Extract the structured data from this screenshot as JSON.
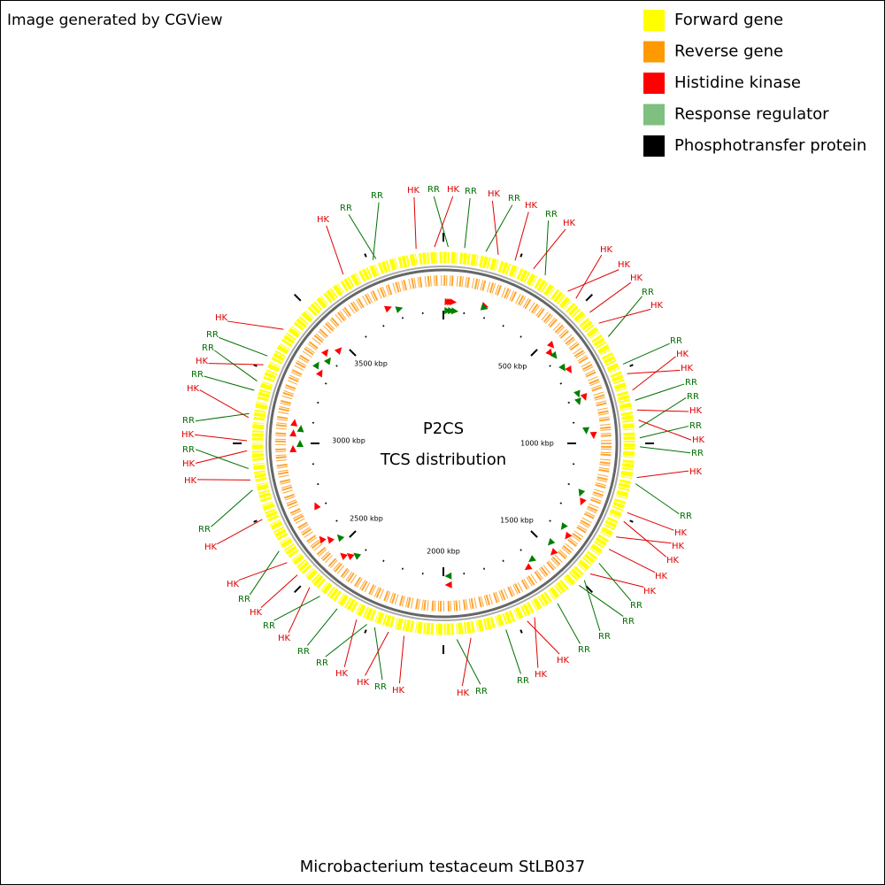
{
  "header": {
    "text": "Image generated by CGView"
  },
  "legend": [
    {
      "label": "Forward gene",
      "color": "#ffff00"
    },
    {
      "label": "Reverse gene",
      "color": "#ff9900"
    },
    {
      "label": "Histidine kinase",
      "color": "#ff0000"
    },
    {
      "label": "Response regulator",
      "color": "#7fbf7f"
    },
    {
      "label": "Phosphotransfer protein",
      "color": "#000000"
    }
  ],
  "map": {
    "title": "P2CS",
    "subtitle": "TCS distribution",
    "scale_labels": [
      "500 kbp",
      "1000 kbp",
      "1500 kbp",
      "2000 kbp",
      "2500 kbp",
      "3000 kbp",
      "3500 kbp"
    ],
    "feature_labels": [
      "RR",
      "HK",
      "RR",
      "HK",
      "RR",
      "HK",
      "RR",
      "HK",
      "RR",
      "HK",
      "HK",
      "HK",
      "HK",
      "RR",
      "HK",
      "RR",
      "HK",
      "HK",
      "RR",
      "RR",
      "HK",
      "RR",
      "HK",
      "RR",
      "HK",
      "RR",
      "HK",
      "HK",
      "HK",
      "HK",
      "HK",
      "RR",
      "RR",
      "RR",
      "RR",
      "HK",
      "HK",
      "RR",
      "RR",
      "HK",
      "HK",
      "RR",
      "HK",
      "HK",
      "RR",
      "RR",
      "HK",
      "RR",
      "HK",
      "RR",
      "HK",
      "HK",
      "RR",
      "HK",
      "HK",
      "RR",
      "HK",
      "RR",
      "HK",
      "RR",
      "HK",
      "RR",
      "RR",
      "HK",
      "HK",
      "RR"
    ]
  },
  "footer": {
    "text": "Microbacterium testaceum StLB037"
  }
}
